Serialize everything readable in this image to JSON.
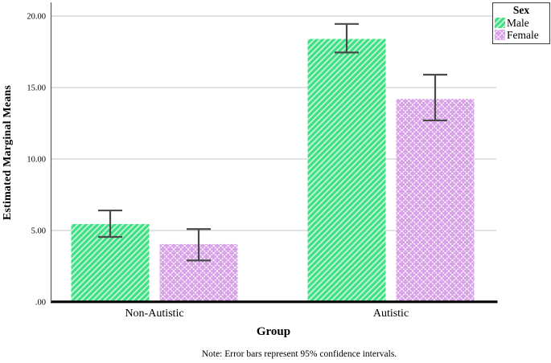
{
  "chart_data": {
    "type": "bar",
    "title": "",
    "xlabel": "Group",
    "ylabel": "Estimated Marginal Means",
    "note": "Note: Error bars represent 95% confidence intervals.",
    "categories": [
      "Non-Autistic",
      "Autistic"
    ],
    "series": [
      {
        "name": "Male",
        "pattern": "green-diagonal-hatch",
        "values": [
          5.45,
          18.4
        ],
        "ci_low": [
          4.55,
          17.45
        ],
        "ci_high": [
          6.4,
          19.45
        ]
      },
      {
        "name": "Female",
        "pattern": "purple-cross-dots",
        "values": [
          4.05,
          14.2
        ],
        "ci_low": [
          2.9,
          12.7
        ],
        "ci_high": [
          5.1,
          15.9
        ]
      }
    ],
    "error_bars": "95% confidence intervals",
    "ylim": [
      0,
      21
    ],
    "y_ticks": [
      {
        "label": ".00",
        "value": 0
      },
      {
        "label": "5.00",
        "value": 5
      },
      {
        "label": "10.00",
        "value": 10
      },
      {
        "label": "15.00",
        "value": 15
      },
      {
        "label": "20.00",
        "value": 20
      }
    ],
    "grid": true,
    "legend": {
      "title": "Sex",
      "position": "top-right",
      "items": [
        {
          "label": "Male"
        },
        {
          "label": "Female"
        }
      ]
    },
    "style": {
      "male_fill": "#3EE083",
      "male_stripe": "#C8F6DC",
      "female_fill": "#D9A3E8",
      "female_bg": "#FFFFFF",
      "grid_color": "#D9D9D9",
      "axis_color": "#595959",
      "baseline_color": "#000000",
      "error_bar_color": "#4A4A4A",
      "legend_border": "#3C3C3C"
    }
  }
}
